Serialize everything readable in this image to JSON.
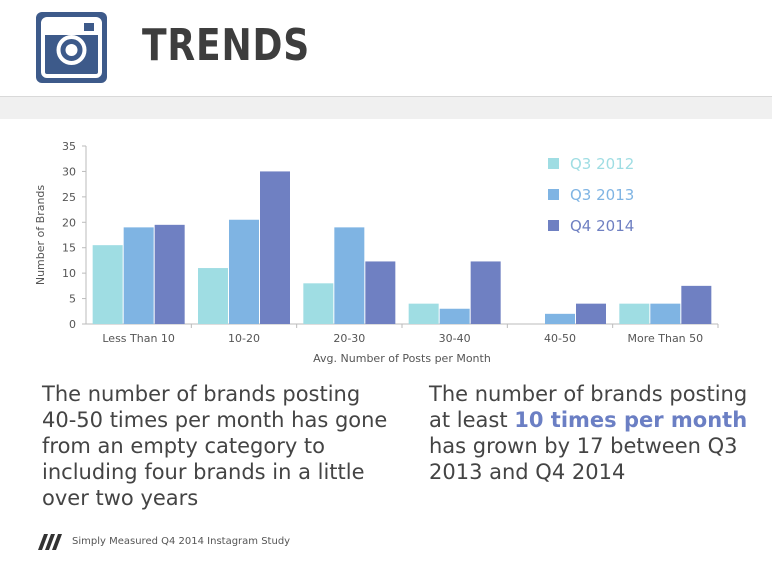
{
  "header": {
    "title": "TRENDS",
    "logo_icon": "instagram-camera-icon",
    "logo_color": "#3d5a8a"
  },
  "notes": {
    "left": "The number of brands posting 40-50 times per month has gone from an empty category to including four brands in a little over two years",
    "right_pre": "The number of brands posting at least ",
    "right_highlight": "10 times per month",
    "right_post": " has grown by 17 between Q3 2013 and Q4 2014"
  },
  "footer": {
    "text": "Simply Measured Q4 2014 Instagram Study",
    "logo_icon": "simply-measured-logo-icon"
  },
  "chart_data": {
    "type": "bar",
    "categories": [
      "Less Than 10",
      "10-20",
      "20-30",
      "30-40",
      "40-50",
      "More Than 50"
    ],
    "series": [
      {
        "name": "Q3 2012",
        "color": "#9fdde3",
        "values": [
          15.5,
          11,
          8,
          4,
          0,
          4
        ]
      },
      {
        "name": "Q3 2013",
        "color": "#7fb4e3",
        "values": [
          19,
          20.5,
          19,
          3,
          2,
          4
        ]
      },
      {
        "name": "Q4 2014",
        "color": "#6f80c2",
        "values": [
          19.5,
          30,
          12.3,
          12.3,
          4,
          7.5
        ]
      }
    ],
    "xlabel": "Avg. Number of Posts per Month",
    "ylabel": "Number of Brands",
    "ylim": [
      0,
      35
    ],
    "yticks": [
      0,
      5,
      10,
      15,
      20,
      25,
      30,
      35
    ],
    "grid": false,
    "legend_position": "top-right"
  }
}
